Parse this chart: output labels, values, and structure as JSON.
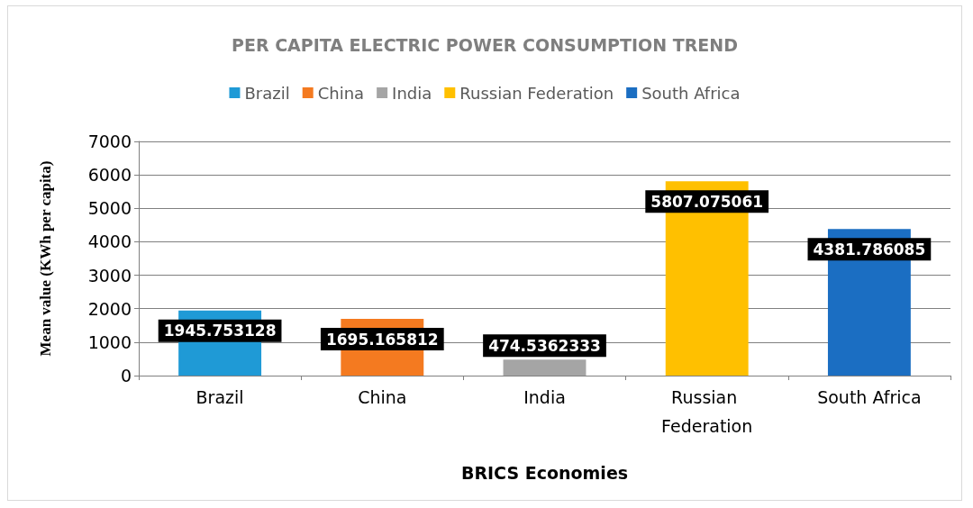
{
  "chart_data": {
    "type": "bar",
    "title": "PER CAPITA ELECTRIC POWER CONSUMPTION TREND",
    "xlabel": "BRICS Economies",
    "ylabel": "Mean value (KWh per capita)",
    "categories": [
      "Brazil",
      "China",
      "India",
      "Russian Federation",
      "South Africa"
    ],
    "series": [
      {
        "name": "Brazil",
        "color": "#1f9ad6",
        "values": [
          1945.753128,
          null,
          null,
          null,
          null
        ]
      },
      {
        "name": "China",
        "color": "#f47a20",
        "values": [
          null,
          1695.165812,
          null,
          null,
          null
        ]
      },
      {
        "name": "India",
        "color": "#a5a5a5",
        "values": [
          null,
          null,
          474.5362333,
          null,
          null
        ]
      },
      {
        "name": "Russian Federation",
        "color": "#ffc000",
        "values": [
          null,
          null,
          null,
          5807.075061,
          null
        ]
      },
      {
        "name": "South Africa",
        "color": "#1b6ec2",
        "values": [
          null,
          null,
          null,
          null,
          4381.786085
        ]
      }
    ],
    "ylim": [
      0,
      7000
    ],
    "yticks": [
      0,
      1000,
      2000,
      3000,
      4000,
      5000,
      6000,
      7000
    ],
    "grid": "y",
    "legend": "top",
    "data_labels": true
  }
}
